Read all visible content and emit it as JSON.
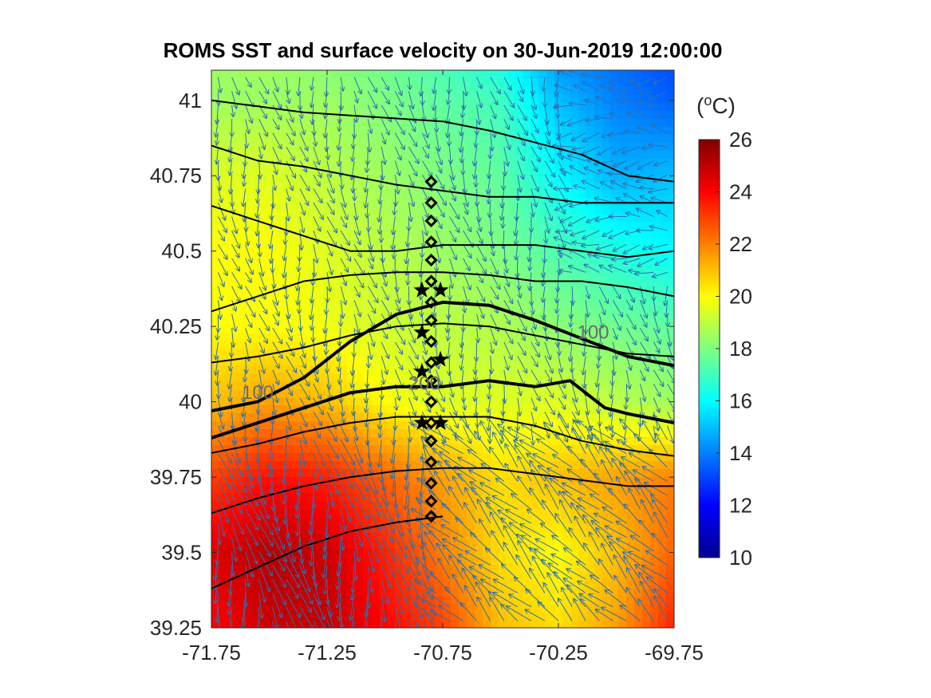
{
  "chart_data": {
    "type": "heatmap",
    "title": "ROMS SST and surface velocity on 30-Jun-2019 12:00:00",
    "xlim": [
      -71.75,
      -69.75
    ],
    "ylim": [
      39.25,
      41.1
    ],
    "x_ticks": [
      "-71.75",
      "-71.25",
      "-70.75",
      "-70.25",
      "-69.75"
    ],
    "y_ticks": [
      "39.25",
      "39.5",
      "39.75",
      "40",
      "40.25",
      "40.5",
      "40.75",
      "41"
    ],
    "colorbar": {
      "unit_base": "(",
      "unit_sup": "o",
      "unit_rest": "C)",
      "range": [
        10,
        26
      ],
      "ticks": [
        "10",
        "12",
        "14",
        "16",
        "18",
        "20",
        "22",
        "24",
        "26"
      ],
      "colormap": "jet"
    },
    "sst_field": {
      "x": [
        -71.75,
        -71.5,
        -71.25,
        -71.0,
        -70.75,
        -70.5,
        -70.25,
        -70.0,
        -69.75
      ],
      "y": [
        39.25,
        39.5,
        39.75,
        40.0,
        40.25,
        40.5,
        40.75,
        41.0,
        41.1
      ],
      "values": [
        [
          24.0,
          24.8,
          25.0,
          24.0,
          23.0,
          21.0,
          20.5,
          21.5,
          23.5
        ],
        [
          24.5,
          25.2,
          24.8,
          23.5,
          22.0,
          20.5,
          20.0,
          21.0,
          22.5
        ],
        [
          23.0,
          23.8,
          23.5,
          22.5,
          21.5,
          20.5,
          21.0,
          21.5,
          22.0
        ],
        [
          21.0,
          21.5,
          21.0,
          20.0,
          19.5,
          19.5,
          19.5,
          19.0,
          18.5
        ],
        [
          20.0,
          20.0,
          19.8,
          19.3,
          19.0,
          18.8,
          18.2,
          17.8,
          17.5
        ],
        [
          20.0,
          20.0,
          19.5,
          19.0,
          18.5,
          18.0,
          17.2,
          16.5,
          16.0
        ],
        [
          19.5,
          19.5,
          19.0,
          18.5,
          18.0,
          17.5,
          16.0,
          14.8,
          15.0
        ],
        [
          18.5,
          18.5,
          18.5,
          18.0,
          17.5,
          17.0,
          15.0,
          14.0,
          13.5
        ],
        [
          18.5,
          18.5,
          18.2,
          17.8,
          17.2,
          16.5,
          14.5,
          13.8,
          13.2
        ]
      ]
    },
    "contour_labels": [
      {
        "text": "100",
        "lon": -71.55,
        "lat": 40.01
      },
      {
        "text": "200",
        "lon": -70.83,
        "lat": 40.04
      },
      {
        "text": "100",
        "lon": -70.1,
        "lat": 40.21
      }
    ],
    "isobaths": [
      {
        "bold": true,
        "lon": [
          -71.75,
          -71.55,
          -71.35,
          -71.15,
          -70.95,
          -70.75,
          -70.55,
          -70.35,
          -70.15,
          -69.95,
          -69.75
        ],
        "lat": [
          39.97,
          40.0,
          40.08,
          40.2,
          40.29,
          40.33,
          40.32,
          40.27,
          40.21,
          40.15,
          40.12
        ]
      },
      {
        "bold": true,
        "lon": [
          -71.75,
          -71.55,
          -71.35,
          -71.15,
          -70.95,
          -70.75,
          -70.55,
          -70.35,
          -70.2,
          -70.05,
          -69.95,
          -69.75
        ],
        "lat": [
          39.88,
          39.93,
          39.98,
          40.03,
          40.05,
          40.05,
          40.07,
          40.05,
          40.07,
          39.98,
          39.96,
          39.93
        ]
      },
      {
        "bold": false,
        "lon": [
          -71.75,
          -71.55,
          -71.35,
          -71.15,
          -70.95,
          -70.75,
          -70.55,
          -70.35,
          -70.15,
          -69.95,
          -69.75
        ],
        "lat": [
          40.65,
          40.6,
          40.55,
          40.5,
          40.5,
          40.52,
          40.52,
          40.52,
          40.5,
          40.48,
          40.5
        ]
      },
      {
        "bold": false,
        "lon": [
          -71.75,
          -71.55,
          -71.35,
          -71.15,
          -70.95,
          -70.75,
          -70.55,
          -70.35,
          -70.15,
          -69.95,
          -69.75
        ],
        "lat": [
          40.85,
          40.8,
          40.78,
          40.75,
          40.72,
          40.7,
          40.68,
          40.68,
          40.66,
          40.66,
          40.66
        ]
      },
      {
        "bold": false,
        "lon": [
          -71.75,
          -71.55,
          -71.35,
          -71.15,
          -70.95,
          -70.75,
          -70.55,
          -70.35,
          -70.15,
          -69.95,
          -69.75
        ],
        "lat": [
          41.0,
          40.98,
          40.96,
          40.95,
          40.94,
          40.93,
          40.9,
          40.86,
          40.82,
          40.75,
          40.73
        ]
      },
      {
        "bold": false,
        "lon": [
          -71.75,
          -71.55,
          -71.35,
          -71.15,
          -70.95,
          -70.75,
          -70.55,
          -70.35,
          -70.15,
          -69.95,
          -69.75
        ],
        "lat": [
          40.3,
          40.35,
          40.4,
          40.42,
          40.43,
          40.43,
          40.42,
          40.4,
          40.4,
          40.38,
          40.35
        ]
      },
      {
        "bold": false,
        "lon": [
          -71.75,
          -71.55,
          -71.35,
          -71.15,
          -70.95,
          -70.75,
          -70.55,
          -70.35,
          -70.15,
          -69.95,
          -69.75
        ],
        "lat": [
          40.13,
          40.15,
          40.18,
          40.22,
          40.25,
          40.26,
          40.25,
          40.22,
          40.19,
          40.16,
          40.15
        ]
      },
      {
        "bold": false,
        "lon": [
          -71.75,
          -71.55,
          -71.35,
          -71.15,
          -70.95,
          -70.75,
          -70.55,
          -70.35,
          -70.15,
          -69.95,
          -69.75
        ],
        "lat": [
          39.83,
          39.86,
          39.9,
          39.93,
          39.95,
          39.95,
          39.95,
          39.92,
          39.87,
          39.84,
          39.82
        ]
      },
      {
        "bold": false,
        "lon": [
          -71.75,
          -71.55,
          -71.35,
          -71.15,
          -70.95,
          -70.75,
          -70.55,
          -70.35,
          -70.15,
          -69.95,
          -69.75
        ],
        "lat": [
          39.63,
          39.68,
          39.72,
          39.75,
          39.77,
          39.78,
          39.78,
          39.76,
          39.74,
          39.72,
          39.72
        ]
      },
      {
        "bold": false,
        "lon": [
          -71.75,
          -71.55,
          -71.35,
          -71.15,
          -70.95,
          -70.75
        ],
        "lat": [
          39.38,
          39.45,
          39.52,
          39.57,
          39.6,
          39.62
        ]
      }
    ],
    "diamond_stations": {
      "lon": -70.8,
      "lat": [
        40.73,
        40.66,
        40.6,
        40.53,
        40.47,
        40.4,
        40.33,
        40.27,
        40.2,
        40.13,
        40.07,
        40.0,
        39.93,
        39.87,
        39.8,
        39.73,
        39.67,
        39.62
      ]
    },
    "star_stations": {
      "lon": [
        -70.84,
        -70.76,
        -70.84,
        -70.76,
        -70.84,
        -70.84,
        -70.76
      ],
      "lat": [
        40.37,
        40.37,
        40.23,
        40.14,
        40.1,
        39.93,
        39.93
      ]
    },
    "velocity_vectors": "surface velocity arrows over entire domain",
    "colors": {
      "vector": "#2e6fb0",
      "contour": "#000000",
      "axis": "#262626"
    }
  }
}
